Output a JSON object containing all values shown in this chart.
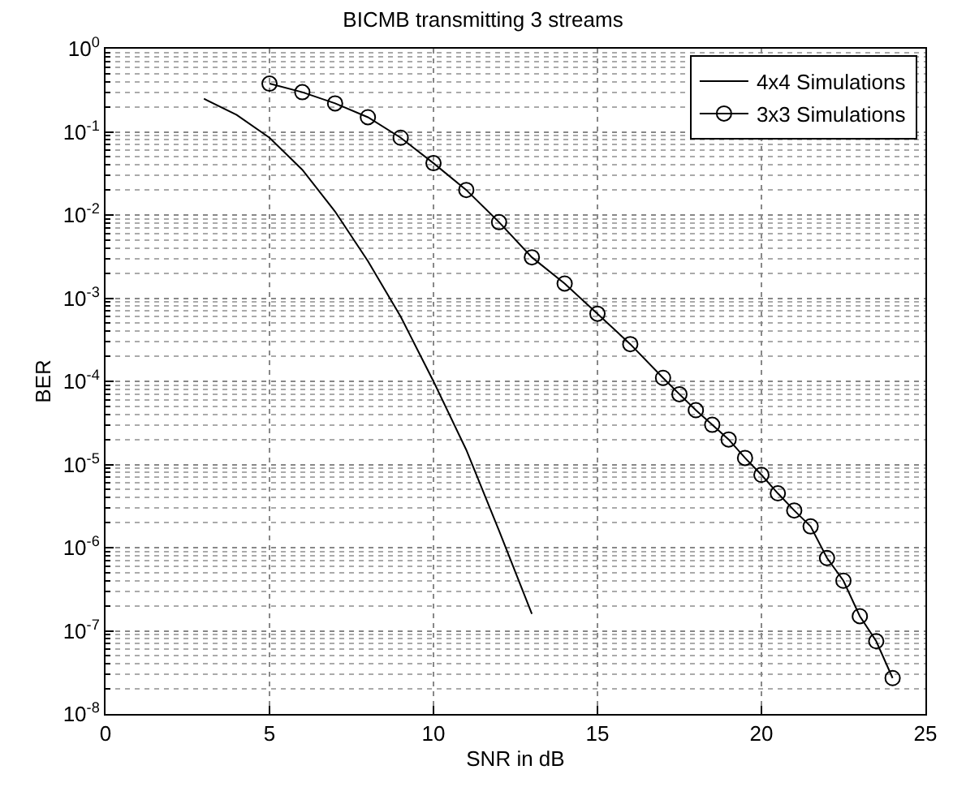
{
  "chart_data": {
    "type": "line",
    "title": "BICMB transmitting 3 streams",
    "xlabel": "SNR in dB",
    "ylabel": "BER",
    "log": "y",
    "grid": true,
    "legend": "top right",
    "xlim": [
      0,
      25
    ],
    "xticks": [
      0,
      5,
      10,
      15,
      20,
      25
    ],
    "ylim": [
      1e-08,
      1
    ],
    "yticks": [
      {
        "value": 1e-08,
        "label": "10$^{-8}$"
      },
      {
        "value": 1e-07,
        "label": "10$^{-7}$"
      },
      {
        "value": 1e-06,
        "label": "10$^{-6}$"
      },
      {
        "value": 1e-05,
        "label": "10$^{-5}$"
      },
      {
        "value": 0.0001,
        "label": "10$^{-4}$"
      },
      {
        "value": 0.001,
        "label": "10$^{-3}$"
      },
      {
        "value": 0.01,
        "label": "10$^{-2}$"
      },
      {
        "value": 0.1,
        "label": "10$^{-1}$"
      },
      {
        "value": 1,
        "label": "10$^{0}$"
      }
    ],
    "series": [
      {
        "name": "4x4 Simulations",
        "color": "#000000",
        "marker": "none",
        "x": [
          3,
          4,
          5,
          6,
          7,
          8,
          9,
          10,
          11,
          12,
          13
        ],
        "values": [
          0.25,
          0.16,
          0.085,
          0.035,
          0.011,
          0.0028,
          0.0006,
          0.0001,
          1.5e-05,
          1.6e-06,
          1.6e-07
        ]
      },
      {
        "name": "3x3 Simulations",
        "color": "#000000",
        "marker": "circle",
        "x": [
          5,
          6,
          7,
          8,
          9,
          10,
          11,
          12,
          13,
          14,
          15,
          16,
          17,
          17.5,
          18,
          18.5,
          19,
          19.5,
          20,
          20.5,
          21,
          21.5,
          22,
          22.5,
          23,
          23.5,
          24
        ],
        "values": [
          0.38,
          0.3,
          0.22,
          0.15,
          0.085,
          0.042,
          0.02,
          0.0082,
          0.0031,
          0.0015,
          0.00065,
          0.00028,
          0.00011,
          7e-05,
          4.5e-05,
          3e-05,
          2e-05,
          1.2e-05,
          7.5e-06,
          4.5e-06,
          2.8e-06,
          1.8e-06,
          7.5e-07,
          4e-07,
          1.5e-07,
          7.5e-08,
          2.7e-08
        ]
      }
    ]
  }
}
